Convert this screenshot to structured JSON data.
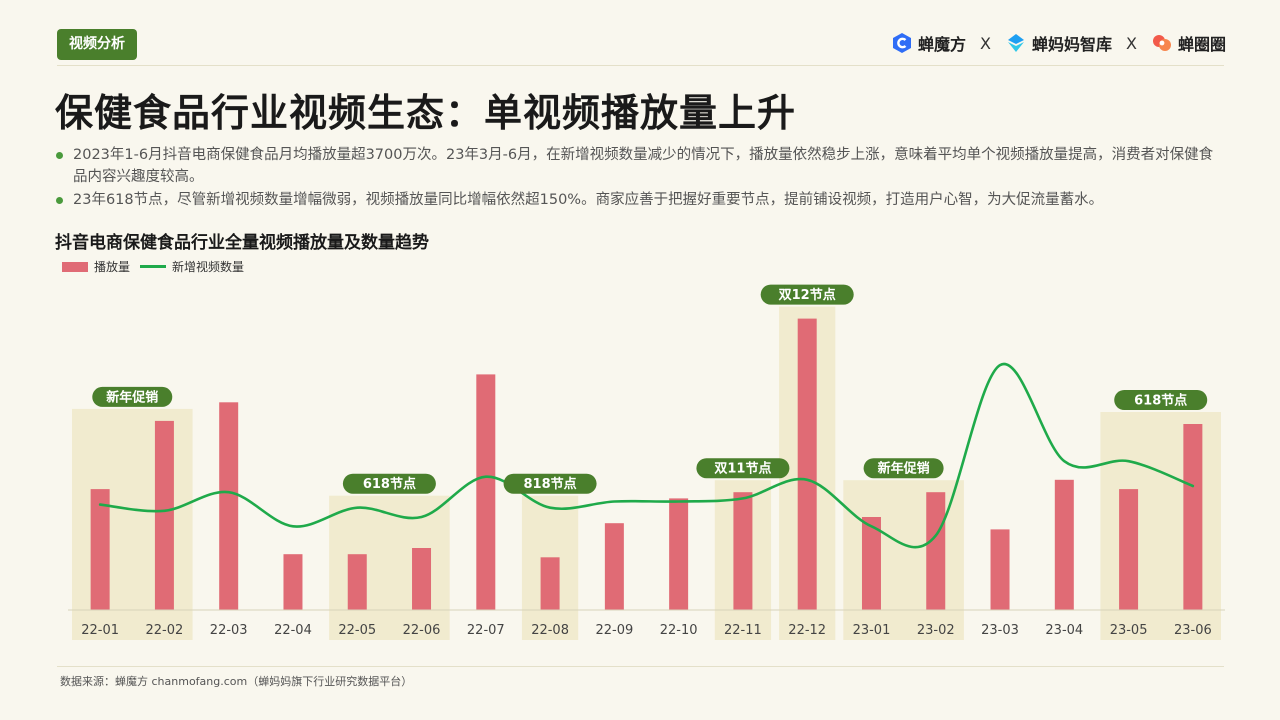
{
  "header": {
    "section_tag": "视频分析",
    "brands": [
      {
        "name": "蝉魔方",
        "icon": "chanmofang-logo-icon",
        "color": "#2f6df6"
      },
      {
        "name": "蝉妈妈智库",
        "icon": "chanmama-logo-icon",
        "color": "#1e9ff2"
      },
      {
        "name": "蝉圈圈",
        "icon": "chanquanquan-logo-icon",
        "color": "#f25a4a"
      }
    ],
    "separator": "X"
  },
  "title": "保健食品行业视频生态：单视频播放量上升",
  "bullets": [
    "2023年1-6月抖音电商保健食品月均播放量超3700万次。23年3月-6月，在新增视频数量减少的情况下，播放量依然稳步上涨，意味着平均单个视频播放量提高，消费者对保健食品内容兴趣度较高。",
    "23年618节点，尽管新增视频数量增幅微弱，视频播放量同比增幅依然超150%。商家应善于把握好重要节点，提前铺设视频，打造用户心智，为大促流量蓄水。"
  ],
  "chart_data": {
    "type": "bar",
    "title": "抖音电商保健食品行业全量视频播放量及数量趋势",
    "categories": [
      "22-01",
      "22-02",
      "22-03",
      "22-04",
      "22-05",
      "22-06",
      "22-07",
      "22-08",
      "22-09",
      "22-10",
      "22-11",
      "22-12",
      "23-01",
      "23-02",
      "23-03",
      "23-04",
      "23-05",
      "23-06"
    ],
    "series": [
      {
        "name": "播放量",
        "type": "bar",
        "color": "#e06b75",
        "values": [
          39,
          61,
          67,
          18,
          18,
          20,
          76,
          17,
          28,
          36,
          38,
          94,
          30,
          38,
          26,
          42,
          39,
          60
        ]
      },
      {
        "name": "新增视频数量",
        "type": "line",
        "color": "#1faa4a",
        "values": [
          34,
          32,
          38,
          27,
          33,
          30,
          43,
          33,
          35,
          35,
          36,
          42,
          27,
          24,
          79,
          48,
          48,
          40
        ]
      }
    ],
    "ylim": [
      0,
      100
    ],
    "grid": false,
    "legend": "top-left",
    "highlights": [
      {
        "label": "新年促销",
        "from": 0,
        "to": 1
      },
      {
        "label": "618节点",
        "from": 4,
        "to": 5
      },
      {
        "label": "818节点",
        "from": 7,
        "to": 7
      },
      {
        "label": "双11节点",
        "from": 10,
        "to": 10
      },
      {
        "label": "双12节点",
        "from": 11,
        "to": 11
      },
      {
        "label": "新年促销",
        "from": 12,
        "to": 13
      },
      {
        "label": "618节点",
        "from": 16,
        "to": 17
      }
    ],
    "highlight_color": "#f1ebcf",
    "tag_color": "#4a7f2c"
  },
  "footnote": "数据来源：蝉魔方 chanmofang.com（蝉妈妈旗下行业研究数据平台）"
}
